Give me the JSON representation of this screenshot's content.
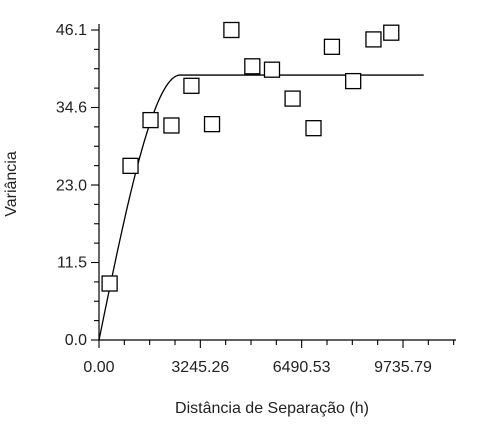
{
  "chart_data": {
    "type": "scatter",
    "title": "",
    "xlabel": "Distância de Separação (h)",
    "ylabel": "Variância",
    "xlim": [
      0,
      9735.79
    ],
    "ylim": [
      0,
      46.1
    ],
    "x_ticks": [
      0.0,
      3245.26,
      6490.53,
      9735.79
    ],
    "x_tick_labels": [
      "0.00",
      "3245.26",
      "6490.53",
      "9735.79"
    ],
    "y_ticks": [
      0.0,
      11.5,
      23.0,
      34.6,
      46.1
    ],
    "y_tick_labels": [
      "0.0",
      "11.5",
      "23.0",
      "34.6",
      "46.1"
    ],
    "x_minor_ticks_per_interval": 4,
    "y_minor_ticks_per_interval": 4,
    "grid": false,
    "series": [
      {
        "type": "scatter",
        "marker": "open-square",
        "points": [
          {
            "x": 340,
            "y": 8.4
          },
          {
            "x": 1010,
            "y": 25.9
          },
          {
            "x": 1650,
            "y": 32.7
          },
          {
            "x": 2320,
            "y": 31.9
          },
          {
            "x": 2960,
            "y": 37.8
          },
          {
            "x": 3620,
            "y": 32.1
          },
          {
            "x": 4240,
            "y": 46.1
          },
          {
            "x": 4910,
            "y": 40.7
          },
          {
            "x": 5540,
            "y": 40.2
          },
          {
            "x": 6200,
            "y": 35.9
          },
          {
            "x": 6870,
            "y": 31.5
          },
          {
            "x": 7460,
            "y": 43.6
          },
          {
            "x": 8140,
            "y": 38.5
          },
          {
            "x": 8790,
            "y": 44.7
          },
          {
            "x": 9360,
            "y": 45.7
          }
        ]
      },
      {
        "type": "line",
        "model": "spherical",
        "nugget": 0,
        "sill": 39.4,
        "range": 2600,
        "x_end": 10400
      }
    ],
    "colors": {
      "marker_stroke": "#000000",
      "line": "#000000",
      "axis": "#000000"
    }
  }
}
